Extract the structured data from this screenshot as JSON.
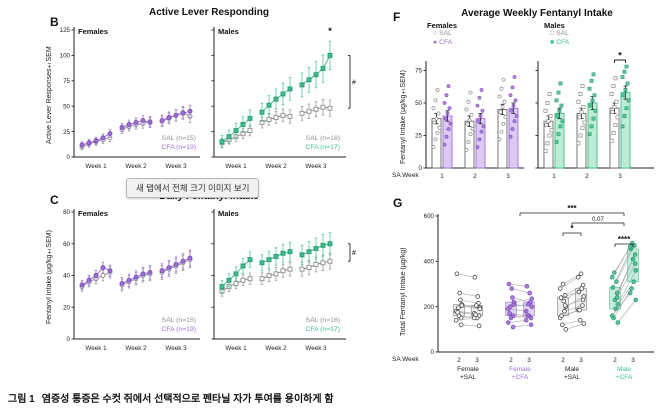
{
  "tooltip": {
    "text": "새 탭에서 전체 크기 이미지 보기"
  },
  "caption": {
    "label": "그림 1",
    "text": "염증성 통증은 수컷 쥐에서 선택적으로 펜타닐 자가 투여를 용이하게 함"
  },
  "colors": {
    "sal": "#8f8f8f",
    "sal_edge": "#6e6e6e",
    "cfa_female": "#9d6fd6",
    "cfa_female_edge": "#7d4fc0",
    "cfa_female_fill": "#dccaf3",
    "cfa_male": "#3fbf8f",
    "cfa_male_edge": "#2a9a6e",
    "cfa_male_fill": "#bdebd8",
    "axis": "#222222"
  },
  "chart_data": [
    {
      "id": "B",
      "type": "line",
      "title": "Active Lever Responding",
      "ylabel": "Active Lever Responses±SEM",
      "ylim": [
        0,
        125
      ],
      "yticks": [
        0,
        25,
        50,
        75,
        100,
        125
      ],
      "weeks": [
        "Week 1",
        "Week 2",
        "Week 3"
      ],
      "subpanels": [
        {
          "name": "Females",
          "series": [
            {
              "name": "SAL (n=15)",
              "marker": "circle",
              "open": true,
              "color": "#8f8f8f",
              "edge": "#6e6e6e",
              "sem": [
                3,
                6
              ],
              "values": [
                10,
                13,
                15,
                17,
                19,
                27,
                30,
                32,
                33,
                35,
                35,
                38,
                41,
                44,
                40
              ]
            },
            {
              "name": "CFA (n=19)",
              "marker": "circle",
              "open": false,
              "color": "#9d6fd6",
              "edge": "#7d4fc0",
              "sem": [
                3,
                6
              ],
              "values": [
                12,
                14,
                16,
                19,
                23,
                29,
                32,
                34,
                36,
                34,
                36,
                39,
                41,
                43,
                45
              ]
            }
          ]
        },
        {
          "name": "Males",
          "series": [
            {
              "name": "SAL (n=16)",
              "marker": "square",
              "open": true,
              "color": "#8f8f8f",
              "edge": "#6e6e6e",
              "sem": [
                4,
                8
              ],
              "values": [
                14,
                17,
                20,
                23,
                26,
                34,
                37,
                39,
                41,
                40,
                43,
                45,
                47,
                49,
                48
              ]
            },
            {
              "name": "CFA (n=17)",
              "marker": "square",
              "open": false,
              "color": "#3fbf8f",
              "edge": "#2a9a6e",
              "sem": [
                6,
                14
              ],
              "values": [
                15,
                20,
                26,
                32,
                38,
                44,
                51,
                57,
                62,
                67,
                71,
                76,
                81,
                87,
                100
              ]
            }
          ],
          "annotations": [
            {
              "type": "star-top",
              "text": "*"
            },
            {
              "type": "bracket-right",
              "text": "#"
            }
          ]
        }
      ]
    },
    {
      "id": "C",
      "type": "line",
      "title": "Daily Fentanyl Intake",
      "ylabel": "Fentanyl Intake (µg/kg±SEM)",
      "ylim": [
        0,
        80
      ],
      "yticks": [
        0,
        20,
        40,
        60,
        80
      ],
      "weeks": [
        "Week 1",
        "Week 2",
        "Week 3"
      ],
      "subpanels": [
        {
          "name": "Females",
          "series": [
            {
              "name": "SAL (n=15)",
              "marker": "circle",
              "open": true,
              "color": "#8f8f8f",
              "edge": "#6e6e6e",
              "sem": [
                3,
                5
              ],
              "values": [
                33,
                36,
                38,
                40,
                42,
                34,
                36,
                38,
                40,
                41,
                42,
                44,
                46,
                48,
                50
              ]
            },
            {
              "name": "CFA (n=19)",
              "marker": "circle",
              "open": false,
              "color": "#9d6fd6",
              "edge": "#7d4fc0",
              "sem": [
                3,
                5
              ],
              "values": [
                34,
                37,
                40,
                45,
                43,
                35,
                37,
                39,
                41,
                42,
                43,
                45,
                47,
                49,
                51
              ]
            }
          ]
        },
        {
          "name": "Males",
          "series": [
            {
              "name": "SAL (n=16)",
              "marker": "square",
              "open": true,
              "color": "#8f8f8f",
              "edge": "#6e6e6e",
              "sem": [
                3,
                5
              ],
              "values": [
                30,
                33,
                35,
                37,
                38,
                38,
                40,
                41,
                43,
                44,
                44,
                45,
                47,
                48,
                49
              ]
            },
            {
              "name": "CFA (n=17)",
              "marker": "square",
              "open": false,
              "color": "#3fbf8f",
              "edge": "#2a9a6e",
              "sem": [
                4,
                7
              ],
              "values": [
                33,
                37,
                41,
                46,
                50,
                48,
                50,
                52,
                54,
                55,
                53,
                55,
                57,
                59,
                60
              ]
            }
          ],
          "annotations": [
            {
              "type": "bracket-right",
              "text": "#"
            }
          ]
        }
      ]
    },
    {
      "id": "F",
      "type": "bar",
      "title": "Average Weekly Fentanyl Intake",
      "ylabel": "Fentanyl Intake (µg/kg±SEM)",
      "xlabel": "SA Week",
      "ylim": [
        0,
        80
      ],
      "yticks": [
        0,
        25,
        50,
        75
      ],
      "week_labels": [
        "1",
        "2",
        "3"
      ],
      "legend": {
        "females": {
          "title": "Females",
          "items": [
            {
              "label": "SAL",
              "glyph": "○",
              "color": "#8f8f8f"
            },
            {
              "label": "CFA",
              "glyph": "●",
              "color": "#9d6fd6"
            }
          ]
        },
        "males": {
          "title": "Males",
          "items": [
            {
              "label": "SAL",
              "glyph": "□",
              "color": "#8f8f8f"
            },
            {
              "label": "CFA",
              "glyph": "■",
              "color": "#3fbf8f"
            }
          ]
        }
      },
      "significance": {
        "text": "*",
        "location": "Males Week 3 SAL vs CFA"
      },
      "subpanels": [
        {
          "name": "Females",
          "bars": [
            {
              "week": "1",
              "group": "SAL",
              "mean": 38,
              "sem": 4,
              "points": [
                16,
                22,
                27,
                31,
                35,
                38,
                42,
                46,
                52,
                60
              ]
            },
            {
              "week": "1",
              "group": "CFA",
              "mean": 40,
              "sem": 4,
              "points": [
                18,
                24,
                30,
                34,
                38,
                42,
                46,
                50,
                56,
                63
              ]
            },
            {
              "week": "2",
              "group": "SAL",
              "mean": 36,
              "sem": 4,
              "points": [
                14,
                20,
                26,
                30,
                34,
                37,
                41,
                45,
                51,
                58
              ]
            },
            {
              "week": "2",
              "group": "CFA",
              "mean": 38,
              "sem": 4,
              "points": [
                16,
                22,
                28,
                32,
                36,
                40,
                44,
                48,
                54,
                60
              ]
            },
            {
              "week": "3",
              "group": "SAL",
              "mean": 45,
              "sem": 4,
              "points": [
                22,
                28,
                34,
                39,
                43,
                47,
                51,
                55,
                61,
                68
              ]
            },
            {
              "week": "3",
              "group": "CFA",
              "mean": 46,
              "sem": 4,
              "points": [
                24,
                30,
                36,
                40,
                44,
                48,
                52,
                56,
                62,
                70
              ]
            }
          ]
        },
        {
          "name": "Males",
          "bars": [
            {
              "week": "1",
              "group": "SAL",
              "mean": 36,
              "sem": 4,
              "points": [
                13,
                19,
                25,
                29,
                33,
                36,
                40,
                44,
                50,
                57
              ]
            },
            {
              "week": "1",
              "group": "CFA",
              "mean": 42,
              "sem": 4,
              "points": [
                20,
                26,
                32,
                36,
                40,
                44,
                48,
                52,
                58,
                65
              ]
            },
            {
              "week": "2",
              "group": "SAL",
              "mean": 42,
              "sem": 4,
              "points": [
                19,
                25,
                31,
                35,
                39,
                43,
                47,
                51,
                57,
                63
              ]
            },
            {
              "week": "2",
              "group": "CFA",
              "mean": 50,
              "sem": 5,
              "points": [
                26,
                32,
                38,
                44,
                48,
                52,
                56,
                61,
                67,
                72
              ]
            },
            {
              "week": "3",
              "group": "SAL",
              "mean": 46,
              "sem": 4,
              "points": [
                21,
                27,
                33,
                39,
                43,
                47,
                51,
                57,
                63,
                69
              ]
            },
            {
              "week": "3",
              "group": "CFA",
              "mean": 58,
              "sem": 5,
              "points": [
                32,
                40,
                46,
                52,
                56,
                60,
                65,
                70,
                74,
                78
              ]
            }
          ]
        }
      ]
    },
    {
      "id": "G",
      "type": "paired-scatter",
      "ylabel": "Total Fentanyl Intake (µg/kg)",
      "xlabel": "SA Week",
      "ylim": [
        0,
        600
      ],
      "yticks": [
        0,
        200,
        400,
        600
      ],
      "x_ticks": [
        "2",
        "3"
      ],
      "groups": [
        {
          "name": "Female +SAL",
          "open": true,
          "color": "#777777",
          "edge": "#4a4a4a",
          "label_color": "#222222",
          "pairs": [
            [
              180,
              170
            ],
            [
              210,
              195
            ],
            [
              150,
              160
            ],
            [
              230,
              215
            ],
            [
              260,
              245
            ],
            [
              160,
              150
            ],
            [
              195,
              205
            ],
            [
              175,
              165
            ],
            [
              345,
              330
            ],
            [
              140,
              150
            ],
            [
              205,
              190
            ],
            [
              120,
              115
            ]
          ]
        },
        {
          "name": "Female +CFA",
          "open": false,
          "color": "#9d6fd6",
          "edge": "#7d4fc0",
          "label_color": "#9d6fd6",
          "pairs": [
            [
              190,
              180
            ],
            [
              220,
              235
            ],
            [
              160,
              150
            ],
            [
              240,
              220
            ],
            [
              280,
              260
            ],
            [
              150,
              160
            ],
            [
              200,
              210
            ],
            [
              170,
              160
            ],
            [
              300,
              290
            ],
            [
              130,
              140
            ],
            [
              210,
              200
            ],
            [
              110,
              120
            ]
          ]
        },
        {
          "name": "Male +SAL",
          "open": true,
          "color": "#777777",
          "edge": "#4a4a4a",
          "label_color": "#222222",
          "pairs": [
            [
              150,
              185
            ],
            [
              200,
              245
            ],
            [
              250,
              295
            ],
            [
              180,
              205
            ],
            [
              225,
              280
            ],
            [
              300,
              345
            ],
            [
              120,
              140
            ],
            [
              160,
              185
            ],
            [
              240,
              265
            ],
            [
              280,
              330
            ],
            [
              100,
              125
            ],
            [
              205,
              230
            ]
          ]
        },
        {
          "name": "Male +CFA",
          "open": false,
          "color": "#3fbf8f",
          "edge": "#2a9a6e",
          "label_color": "#3fbf8f",
          "pairs": [
            [
              160,
              260
            ],
            [
              210,
              360
            ],
            [
              260,
              430
            ],
            [
              310,
              470
            ],
            [
              190,
              310
            ],
            [
              230,
              410
            ],
            [
              350,
              480
            ],
            [
              150,
              280
            ],
            [
              285,
              455
            ],
            [
              330,
              465
            ],
            [
              130,
              230
            ],
            [
              240,
              390
            ]
          ]
        }
      ],
      "annotations": [
        {
          "text": "***",
          "from": 1,
          "to": 3,
          "y": 13,
          "fs": 8
        },
        {
          "text": "0.07",
          "from": 2,
          "to": 3,
          "y": 23,
          "fs": 6
        },
        {
          "text": "*",
          "group": 2,
          "within": true,
          "y": 33,
          "fs": 8
        },
        {
          "text": "****",
          "group": 3,
          "within": true,
          "y": 44,
          "fs": 8
        }
      ]
    }
  ]
}
